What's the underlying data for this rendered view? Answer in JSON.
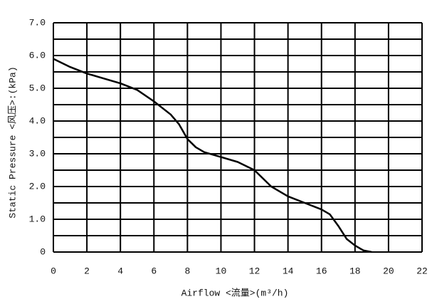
{
  "chart_data": {
    "type": "line",
    "x_label": "Airflow <流量>(m³/h)",
    "y_label": "Static Pressure <风压>:(kPa)",
    "x": [
      0,
      1,
      2,
      3,
      4,
      5,
      6,
      7,
      7.5,
      8,
      8.5,
      9,
      10,
      11,
      12,
      13,
      14,
      15,
      16,
      16.5,
      17,
      17.5,
      18,
      18.5,
      19
    ],
    "series": [
      {
        "color": "#000000",
        "values": [
          5.9,
          5.65,
          5.45,
          5.3,
          5.15,
          4.95,
          4.6,
          4.2,
          3.9,
          3.45,
          3.2,
          3.05,
          2.9,
          2.75,
          2.5,
          2.0,
          1.7,
          1.5,
          1.3,
          1.15,
          0.8,
          0.4,
          0.2,
          0.05,
          0
        ]
      }
    ],
    "xlim": [
      0,
      22
    ],
    "xticks": [
      0,
      2,
      4,
      6,
      8,
      10,
      12,
      14,
      16,
      18,
      20,
      22
    ],
    "ylim": [
      0,
      7
    ],
    "yticks": [
      0,
      {
        "value": 1,
        "label": "1.0"
      },
      {
        "value": 2,
        "label": "2.0"
      },
      {
        "value": 3,
        "label": "3.0"
      },
      {
        "value": 4,
        "label": "4.0"
      },
      {
        "value": 5,
        "label": "5.0"
      },
      {
        "value": 6,
        "label": "6.0"
      },
      {
        "value": 7,
        "label": "7.0"
      }
    ],
    "minor_yticks": [
      0.5,
      1.5,
      2.5,
      3.5,
      4.5,
      5.5,
      6.5
    ],
    "grid": true
  }
}
